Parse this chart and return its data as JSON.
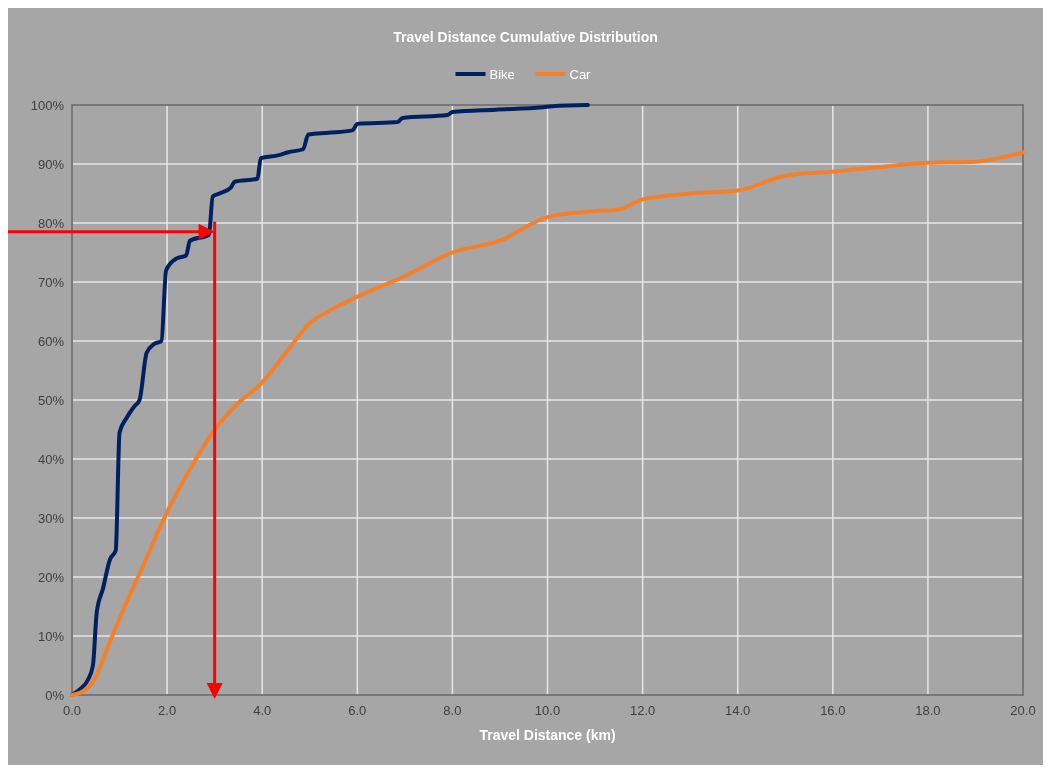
{
  "chart_data": {
    "type": "line",
    "title": "Travel Distance Cumulative Distribution",
    "xlabel": "Travel Distance (km)",
    "legend": "top",
    "grid": true,
    "xlim": [
      0,
      20
    ],
    "xticks": [
      {
        "value": 0,
        "label": "0.0"
      },
      {
        "value": 2,
        "label": "2.0"
      },
      {
        "value": 4,
        "label": "4.0"
      },
      {
        "value": 6,
        "label": "6.0"
      },
      {
        "value": 8,
        "label": "8.0"
      },
      {
        "value": 10,
        "label": "10.0"
      },
      {
        "value": 12,
        "label": "12.0"
      },
      {
        "value": 14,
        "label": "14.0"
      },
      {
        "value": 16,
        "label": "16.0"
      },
      {
        "value": 18,
        "label": "18.0"
      },
      {
        "value": 20,
        "label": "20.0"
      }
    ],
    "ylim": [
      0,
      100
    ],
    "yticks": [
      {
        "value": 0,
        "label": "0%"
      },
      {
        "value": 10,
        "label": "10%"
      },
      {
        "value": 20,
        "label": "20%"
      },
      {
        "value": 30,
        "label": "30%"
      },
      {
        "value": 40,
        "label": "40%"
      },
      {
        "value": 50,
        "label": "50%"
      },
      {
        "value": 60,
        "label": "60%"
      },
      {
        "value": 70,
        "label": "70%"
      },
      {
        "value": 80,
        "label": "80%"
      },
      {
        "value": 90,
        "label": "90%"
      },
      {
        "value": 100,
        "label": "100%"
      }
    ],
    "ref_lines": [
      {
        "axis": "y",
        "value": 78.5,
        "color": "#ff0000"
      },
      {
        "axis": "x",
        "value": 3,
        "color": "#ff0000"
      }
    ],
    "series": [
      {
        "name": "Bike",
        "color": "#002060",
        "x": [
          0,
          0.17,
          0.33,
          0.44,
          0.52,
          0.65,
          0.8,
          0.92,
          1.0,
          1.15,
          1.32,
          1.42,
          1.57,
          1.73,
          1.88,
          1.98,
          2.2,
          2.4,
          2.48,
          2.88,
          2.96,
          3.1,
          3.34,
          3.42,
          3.9,
          3.97,
          4.35,
          4.55,
          4.86,
          4.97,
          5.4,
          5.9,
          6.0,
          6.85,
          6.95,
          7.9,
          8.0,
          8.9,
          9.9,
          10.1,
          10.85
        ],
        "values": [
          0,
          1,
          2.5,
          5,
          14,
          18,
          23,
          24.5,
          44.5,
          47,
          49,
          50,
          58,
          59.5,
          60,
          72,
          74,
          74.5,
          77,
          78,
          84.5,
          85,
          86,
          87,
          87.5,
          91,
          91.5,
          92,
          92.5,
          95,
          95.3,
          95.7,
          96.8,
          97.1,
          97.8,
          98.3,
          98.8,
          99.2,
          99.6,
          99.8,
          100
        ]
      },
      {
        "name": "Car",
        "color": "#f4812a",
        "x": [
          0,
          0.3,
          0.5,
          0.7,
          1.0,
          1.5,
          2.0,
          2.5,
          3.0,
          3.5,
          4.0,
          4.5,
          5.0,
          5.5,
          6.0,
          7.0,
          8.0,
          9.0,
          10.0,
          11.0,
          11.5,
          12.0,
          13.0,
          14.0,
          15.0,
          16.0,
          17.0,
          18.0,
          19.0,
          20.0
        ],
        "values": [
          0,
          1,
          3,
          7,
          13,
          22,
          31,
          38.5,
          45,
          49.5,
          53,
          58,
          63,
          65.5,
          67.5,
          71,
          75,
          77,
          81,
          82,
          82.3,
          84,
          85,
          85.5,
          88,
          88.7,
          89.5,
          90.2,
          90.4,
          92
        ]
      }
    ]
  }
}
